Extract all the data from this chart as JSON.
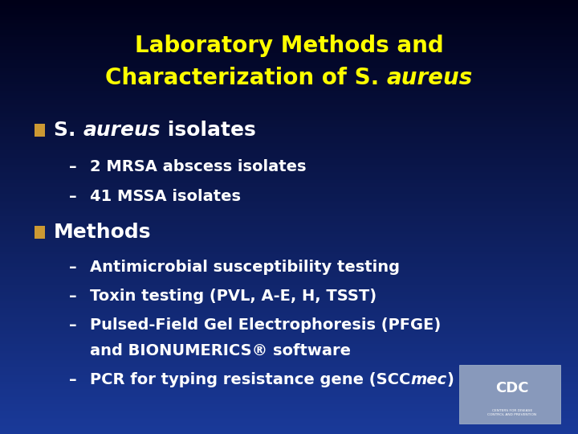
{
  "title_line1": "Laboratory Methods and",
  "title_line2_pre": "Characterization of S. ",
  "title_line2_italic": "aureus",
  "title_color": "#FFFF00",
  "bg_top": "#000018",
  "bg_bottom": "#1a3a9a",
  "bullet_color": "#CC9933",
  "text_color": "#FFFFFF",
  "sub1_1": "2 MRSA abscess isolates",
  "sub1_2": "41 MSSA isolates",
  "bullet2": "Methods",
  "sub2_1": "Antimicrobial susceptibility testing",
  "sub2_2": "Toxin testing (PVL, A-E, H, TSST)",
  "sub2_3a": "Pulsed-Field Gel Electrophoresis (PFGE)",
  "sub2_3b": "and BIONUMERICS® software",
  "sub2_4_pre": "PCR for typing resistance gene (SCC",
  "sub2_4_italic": "mec",
  "sub2_4_post": ")",
  "title_fs": 20,
  "bullet_fs": 18,
  "sub_fs": 14,
  "fig_w": 7.2,
  "fig_h": 5.4,
  "dpi": 100
}
